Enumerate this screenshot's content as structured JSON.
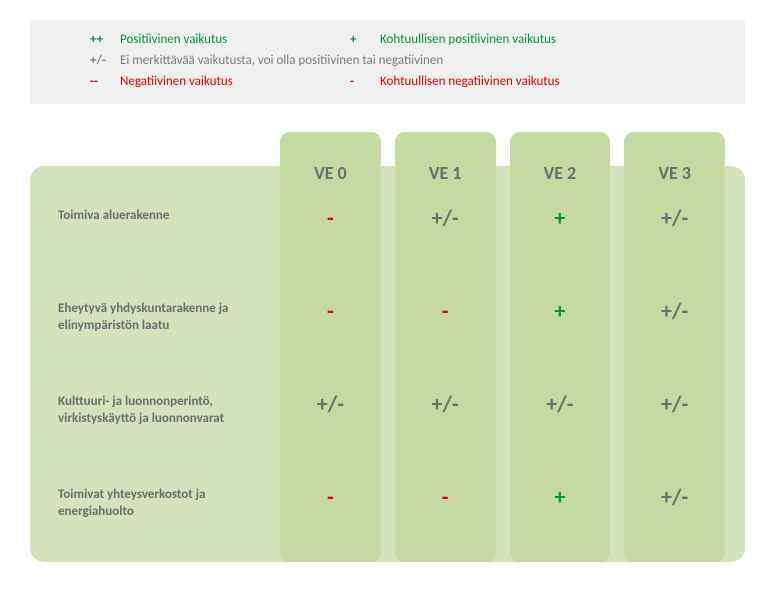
{
  "legend": {
    "background": "#f0f0f0",
    "items": {
      "double_plus": {
        "symbol": "++",
        "text": "Positiivinen vaikutus",
        "color": "#009245"
      },
      "single_plus": {
        "symbol": "+",
        "text": "Kohtuullisen positiivinen vaikutus",
        "color": "#009245"
      },
      "neutral": {
        "symbol": "+/-",
        "text": "Ei merkittävää vaikutusta, voi olla positiivinen tai negatiivinen",
        "color": "#7a7a7a"
      },
      "double_minus": {
        "symbol": "--",
        "text": "Negatiivinen vaikutus",
        "color": "#e60000"
      },
      "single_minus": {
        "symbol": "-",
        "text": "Kohtuullisen negatiivinen vaikutus",
        "color": "#e60000"
      }
    }
  },
  "matrix": {
    "type": "table",
    "background_color": "#d5e3bc",
    "column_color": "#c5d9a2",
    "header_text_color": "#6c6c6c",
    "row_text_color": "#6c6c6c",
    "header_fontsize": 18,
    "row_fontsize": 13,
    "cell_fontsize": 22,
    "border_radius": 14,
    "columns": [
      "VE 0",
      "VE 1",
      "VE 2",
      "VE 3"
    ],
    "rows": [
      {
        "label": "Toimiva aluerakenne",
        "cells": [
          {
            "value": "-",
            "kind": "neg"
          },
          {
            "value": "+/-",
            "kind": "neu"
          },
          {
            "value": "+",
            "kind": "pos"
          },
          {
            "value": "+/-",
            "kind": "neu"
          }
        ]
      },
      {
        "label": "Eheytyvä yhdyskuntarakenne ja elinympäristön laatu",
        "cells": [
          {
            "value": "-",
            "kind": "neg"
          },
          {
            "value": "-",
            "kind": "neg"
          },
          {
            "value": "+",
            "kind": "pos"
          },
          {
            "value": "+/-",
            "kind": "neu"
          }
        ]
      },
      {
        "label": "Kulttuuri- ja luonnonperintö, virkistyskäyttö ja luonnonvarat",
        "cells": [
          {
            "value": "+/-",
            "kind": "neu"
          },
          {
            "value": "+/-",
            "kind": "neu"
          },
          {
            "value": "+/-",
            "kind": "neu"
          },
          {
            "value": "+/-",
            "kind": "neu"
          }
        ]
      },
      {
        "label": "Toimivat yhteysverkostot ja energiahuolto",
        "cells": [
          {
            "value": "-",
            "kind": "neg"
          },
          {
            "value": "-",
            "kind": "neg"
          },
          {
            "value": "+",
            "kind": "pos"
          },
          {
            "value": "+/-",
            "kind": "neu"
          }
        ]
      }
    ],
    "symbol_colors": {
      "pos": "#009245",
      "neg": "#e60000",
      "neu": "#6c6c6c"
    }
  }
}
